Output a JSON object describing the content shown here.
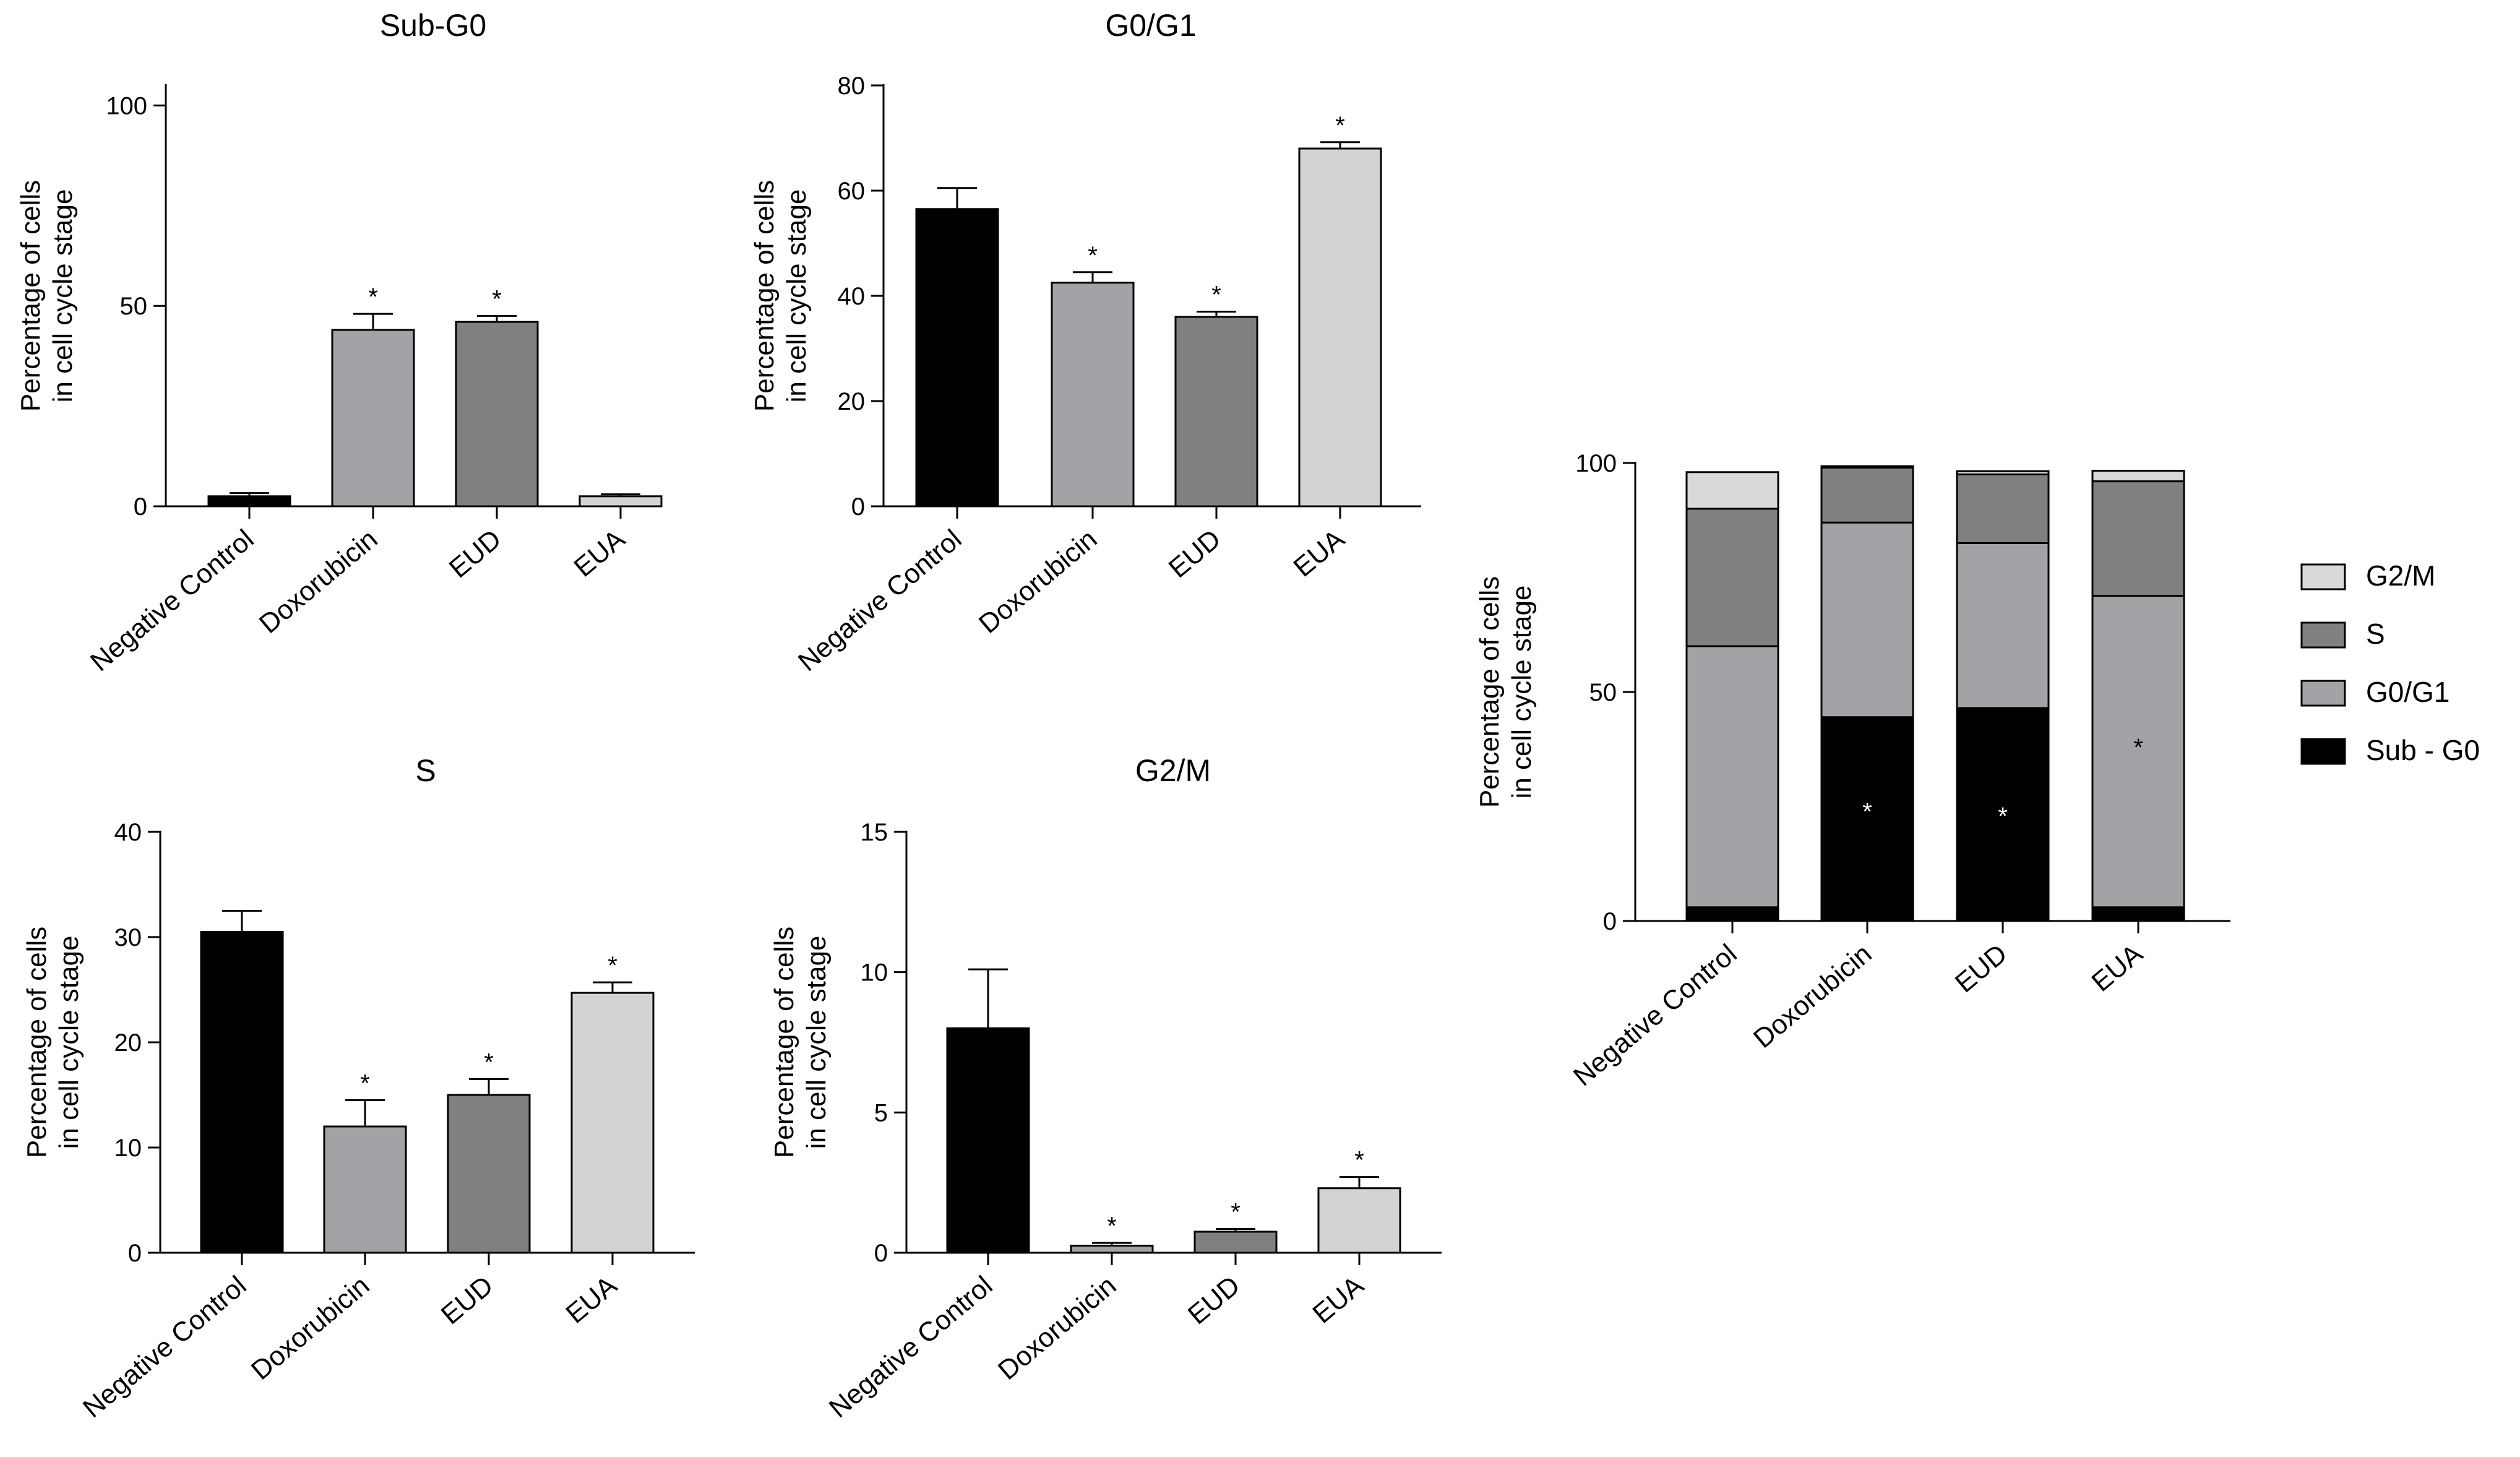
{
  "figure": {
    "y_label_line1": "Percentage of cells",
    "y_label_line2": "in cell cycle stage"
  },
  "colors": {
    "axis": "#000000",
    "outline": "#000000",
    "negative_control": "#000000",
    "doxorubicin": "#a3a3a7",
    "eud": "#808080",
    "eua": "#d3d3d3",
    "stack_sub_g0": "#000000",
    "stack_g0_g1": "#a3a3a7",
    "stack_s": "#808080",
    "stack_g2_m": "#d9d9d9"
  },
  "chart_data": [
    {
      "id": "subg0",
      "type": "bar",
      "title": "Sub-G0",
      "categories": [
        "Negative Control",
        "Doxorubicin",
        "EUD",
        "EUA"
      ],
      "values": [
        2.5,
        44,
        46,
        2.5
      ],
      "errors": [
        0.8,
        4,
        1.5,
        0.5
      ],
      "significant": [
        "",
        "*",
        "*",
        ""
      ],
      "ylim": [
        0,
        105
      ],
      "yticks": [
        0,
        50,
        100
      ],
      "ylabel": "Percentage of cells in cell cycle stage"
    },
    {
      "id": "g0g1",
      "type": "bar",
      "title": "G0/G1",
      "categories": [
        "Negative Control",
        "Doxorubicin",
        "EUD",
        "EUA"
      ],
      "values": [
        56.5,
        42.5,
        36,
        68
      ],
      "errors": [
        4,
        2,
        1,
        1.2
      ],
      "significant": [
        "",
        "*",
        "*",
        "*"
      ],
      "ylim": [
        0,
        80
      ],
      "yticks": [
        0,
        20,
        40,
        60,
        80
      ],
      "ylabel": "Percentage of cells in cell cycle stage"
    },
    {
      "id": "s",
      "type": "bar",
      "title": "S",
      "categories": [
        "Negative Control",
        "Doxorubicin",
        "EUD",
        "EUA"
      ],
      "values": [
        30.5,
        12,
        15,
        24.7
      ],
      "errors": [
        2,
        2.5,
        1.5,
        1
      ],
      "significant": [
        "",
        "*",
        "*",
        "*"
      ],
      "ylim": [
        0,
        40
      ],
      "yticks": [
        0,
        10,
        20,
        30,
        40
      ],
      "ylabel": "Percentage of cells in cell cycle stage"
    },
    {
      "id": "g2m",
      "type": "bar",
      "title": "G2/M",
      "categories": [
        "Negative Control",
        "Doxorubicin",
        "EUD",
        "EUA"
      ],
      "values": [
        8,
        0.25,
        0.75,
        2.3
      ],
      "errors": [
        2.1,
        0.1,
        0.1,
        0.4
      ],
      "significant": [
        "",
        "*",
        "*",
        "*"
      ],
      "ylim": [
        0,
        15
      ],
      "yticks": [
        0,
        5,
        10,
        15
      ],
      "ylabel": "Percentage of cells in cell cycle stage"
    },
    {
      "id": "stacked",
      "type": "bar",
      "stacked": true,
      "title": "",
      "categories": [
        "Negative Control",
        "Doxorubicin",
        "EUD",
        "EUA"
      ],
      "series": [
        {
          "name": "Sub - G0",
          "values": [
            3,
            44.5,
            46.5,
            3
          ],
          "color_key": "stack_sub_g0"
        },
        {
          "name": "G0/G1",
          "values": [
            57,
            42.5,
            36,
            68
          ],
          "color_key": "stack_g0_g1"
        },
        {
          "name": "S",
          "values": [
            30,
            12,
            15,
            25
          ],
          "color_key": "stack_s"
        },
        {
          "name": "G2/M",
          "values": [
            8,
            0.3,
            0.7,
            2.3
          ],
          "color_key": "stack_g2_m"
        }
      ],
      "annotations": [
        {
          "category": "Doxorubicin",
          "text": "*",
          "at_value": 24,
          "color": "#ffffff"
        },
        {
          "category": "EUD",
          "text": "*",
          "at_value": 23,
          "color": "#ffffff"
        },
        {
          "category": "EUA",
          "text": "*",
          "at_value": 38,
          "color": "#000000"
        }
      ],
      "legend_order": [
        "G2/M",
        "S",
        "G0/G1",
        "Sub - G0"
      ],
      "legend_position": "right",
      "ylim": [
        0,
        100
      ],
      "yticks": [
        0,
        50,
        100
      ],
      "ylabel": "Percentage of cells in cell cycle stage"
    }
  ]
}
